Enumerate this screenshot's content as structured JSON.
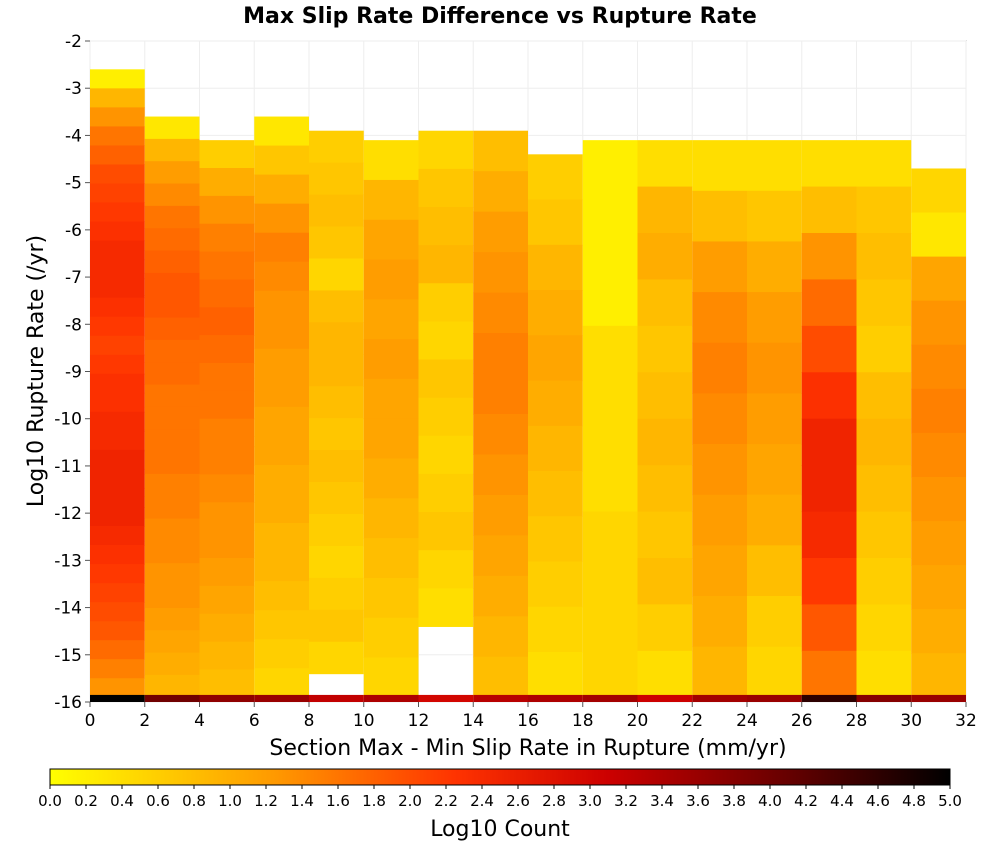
{
  "chart_data": {
    "type": "heatmap",
    "title": "Max Slip Rate Difference vs Rupture Rate",
    "xlabel": "Section Max - Min Slip Rate in Rupture (mm/yr)",
    "ylabel": "Log10 Rupture Rate (/yr)",
    "colorbar_label": "Log10 Count",
    "x_ticks": [
      "0",
      "2",
      "4",
      "6",
      "8",
      "10",
      "12",
      "14",
      "16",
      "18",
      "20",
      "22",
      "24",
      "26",
      "28",
      "30",
      "32"
    ],
    "y_ticks": [
      "-2",
      "-3",
      "-4",
      "-5",
      "-6",
      "-7",
      "-8",
      "-9",
      "-10",
      "-11",
      "-12",
      "-13",
      "-14",
      "-15",
      "-16"
    ],
    "colorbar_ticks": [
      "0.0",
      "0.2",
      "0.4",
      "0.6",
      "0.8",
      "1.0",
      "1.2",
      "1.4",
      "1.6",
      "1.8",
      "2.0",
      "2.2",
      "2.4",
      "2.6",
      "2.8",
      "3.0",
      "3.2",
      "3.4",
      "3.6",
      "3.8",
      "4.0",
      "4.2",
      "4.4",
      "4.6",
      "4.8",
      "5.0"
    ],
    "xlim": [
      0,
      32
    ],
    "ylim": [
      -16,
      -2
    ],
    "zlim": [
      0,
      5
    ],
    "x_bin_width": 2,
    "y_bin_width": 0.25,
    "colormap": [
      "#ffff00",
      "#ff9900",
      "#ff3300",
      "#cc0000",
      "#660000",
      "#000000"
    ],
    "grid": true,
    "legend": "colorbar-bottom",
    "columns": [
      {
        "x": 1,
        "top": -2.6,
        "bottom": -15.9,
        "v": [
          0.2,
          0.9,
          1.3,
          1.6,
          1.8,
          2.0,
          2.1,
          2.2,
          2.3,
          2.4,
          2.4,
          2.4,
          2.3,
          2.2,
          2.1,
          2.2,
          2.3,
          2.3,
          2.4,
          2.4,
          2.5,
          2.5,
          2.5,
          2.5,
          2.4,
          2.3,
          2.2,
          2.1,
          2.0,
          1.9,
          1.7,
          1.5,
          1.3
        ],
        "bottom_row": 5.0
      },
      {
        "x": 3,
        "top": -3.6,
        "bottom": -15.9,
        "v": [
          0.3,
          0.9,
          1.2,
          1.4,
          1.6,
          1.7,
          1.8,
          1.9,
          1.9,
          1.8,
          1.7,
          1.7,
          1.6,
          1.6,
          1.6,
          1.6,
          1.5,
          1.5,
          1.4,
          1.4,
          1.3,
          1.3,
          1.2,
          1.1,
          1.0,
          0.9
        ],
        "bottom_row": 4.0
      },
      {
        "x": 5,
        "top": -4.1,
        "bottom": -15.9,
        "v": [
          0.6,
          1.0,
          1.3,
          1.5,
          1.6,
          1.7,
          1.8,
          1.7,
          1.6,
          1.6,
          1.5,
          1.5,
          1.4,
          1.3,
          1.3,
          1.2,
          1.1,
          1.0,
          0.9,
          0.8
        ],
        "bottom_row": 3.7
      },
      {
        "x": 7,
        "top": -3.6,
        "bottom": -15.9,
        "v": [
          0.3,
          0.7,
          1.0,
          1.3,
          1.5,
          1.4,
          1.3,
          1.3,
          1.2,
          1.2,
          1.1,
          1.1,
          1.0,
          1.0,
          0.9,
          0.9,
          0.8,
          0.7,
          0.6,
          0.5
        ],
        "bottom_row": 3.6
      },
      {
        "x": 9,
        "top": -3.9,
        "bottom": -15.4,
        "v": [
          0.6,
          0.7,
          0.8,
          0.7,
          0.5,
          0.8,
          0.9,
          0.9,
          0.8,
          0.7,
          0.8,
          0.7,
          0.6,
          0.5,
          0.6,
          0.7,
          0.5
        ],
        "bottom_row": 3.2
      },
      {
        "x": 11,
        "top": -4.1,
        "bottom": -15.9,
        "v": [
          0.4,
          0.9,
          1.1,
          1.2,
          1.1,
          1.2,
          1.1,
          1.1,
          1.0,
          0.9,
          0.8,
          0.7,
          0.6,
          0.5
        ],
        "bottom_row": 3.4
      },
      {
        "x": 13,
        "top": -3.9,
        "bottom": -14.4,
        "v": [
          0.5,
          0.7,
          0.8,
          0.9,
          0.6,
          0.5,
          0.7,
          0.6,
          0.5,
          0.6,
          0.7,
          0.5,
          0.4
        ],
        "bottom_row": 3.0
      },
      {
        "x": 15,
        "top": -3.9,
        "bottom": -15.9,
        "v": [
          0.8,
          1.0,
          1.2,
          1.3,
          1.4,
          1.5,
          1.5,
          1.4,
          1.3,
          1.2,
          1.1,
          1.0,
          0.9,
          0.8
        ],
        "bottom_row": 3.3
      },
      {
        "x": 17,
        "top": -4.4,
        "bottom": -15.9,
        "v": [
          0.6,
          0.7,
          0.9,
          1.0,
          1.1,
          1.0,
          0.9,
          0.8,
          0.7,
          0.6,
          0.5,
          0.4
        ],
        "bottom_row": 3.4
      },
      {
        "x": 19,
        "top": -4.1,
        "bottom": -15.9,
        "v": [
          0.2,
          0.4,
          0.5
        ],
        "bottom_row": 3.5
      },
      {
        "x": 21,
        "top": -4.1,
        "bottom": -15.9,
        "v": [
          0.4,
          0.9,
          1.0,
          0.8,
          0.7,
          0.8,
          0.9,
          0.8,
          0.7,
          0.8,
          0.6,
          0.4
        ],
        "bottom_row": 3.1
      },
      {
        "x": 23,
        "top": -4.1,
        "bottom": -15.9,
        "v": [
          0.4,
          0.8,
          1.2,
          1.4,
          1.5,
          1.4,
          1.3,
          1.2,
          1.1,
          1.0,
          0.9
        ],
        "bottom_row": 3.5
      },
      {
        "x": 25,
        "top": -4.1,
        "bottom": -15.9,
        "v": [
          0.4,
          0.7,
          1.0,
          1.2,
          1.3,
          1.2,
          1.1,
          1.0,
          0.8,
          0.6,
          0.5
        ],
        "bottom_row": 3.6
      },
      {
        "x": 27,
        "top": -4.1,
        "bottom": -15.9,
        "v": [
          0.4,
          0.8,
          1.3,
          1.7,
          2.0,
          2.3,
          2.5,
          2.5,
          2.4,
          2.2,
          1.9,
          1.6
        ],
        "bottom_row": 4.6
      },
      {
        "x": 29,
        "top": -4.1,
        "bottom": -15.9,
        "v": [
          0.4,
          0.7,
          0.8,
          0.7,
          0.6,
          0.8,
          0.9,
          0.8,
          0.7,
          0.6,
          0.5,
          0.4
        ],
        "bottom_row": 3.8
      },
      {
        "x": 31,
        "top": -4.7,
        "bottom": -15.9,
        "v": [
          0.5,
          0.3,
          1.1,
          1.3,
          1.4,
          1.5,
          1.4,
          1.3,
          1.2,
          1.1,
          1.0,
          0.9
        ],
        "bottom_row": 3.6
      }
    ]
  }
}
